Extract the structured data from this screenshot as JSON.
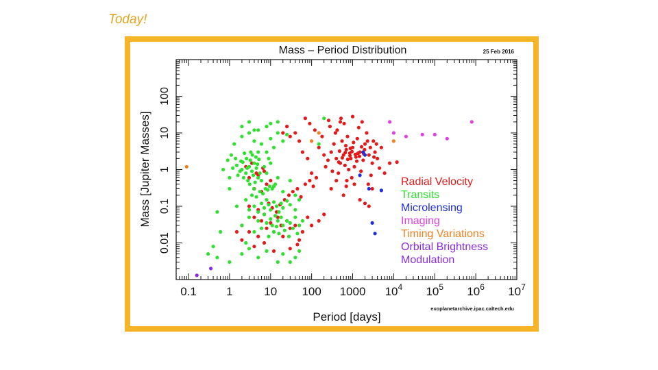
{
  "slide": {
    "title": "Today!"
  },
  "chart_data": {
    "type": "scatter",
    "title": "Mass – Period Distribution",
    "date": "25 Feb 2016",
    "source": "exoplanetarchive.ipac.caltech.edu",
    "xlabel": "Period [days]",
    "ylabel": "Mass [Jupiter Masses]",
    "xscale": "log",
    "yscale": "log",
    "xlim": [
      0.05,
      10000000
    ],
    "ylim": [
      0.001,
      1000
    ],
    "xticks": [
      {
        "v": 0.1,
        "base": "0.1",
        "exp": ""
      },
      {
        "v": 1,
        "base": "1",
        "exp": ""
      },
      {
        "v": 10,
        "base": "10",
        "exp": ""
      },
      {
        "v": 100,
        "base": "100",
        "exp": ""
      },
      {
        "v": 1000,
        "base": "1000",
        "exp": ""
      },
      {
        "v": 10000,
        "base": "10",
        "exp": "4"
      },
      {
        "v": 100000,
        "base": "10",
        "exp": "5"
      },
      {
        "v": 1000000,
        "base": "10",
        "exp": "6"
      },
      {
        "v": 10000000,
        "base": "10",
        "exp": "7"
      }
    ],
    "yticks": [
      {
        "v": 0.01,
        "label": "0.01"
      },
      {
        "v": 0.1,
        "label": "0.1"
      },
      {
        "v": 1,
        "label": "1"
      },
      {
        "v": 10,
        "label": "10"
      },
      {
        "v": 100,
        "label": "100"
      }
    ],
    "legend_position": "right",
    "series": [
      {
        "name": "Radial Velocity",
        "color": "#e41a1a",
        "points": [
          [
            300,
            3
          ],
          [
            400,
            2
          ],
          [
            500,
            1.5
          ],
          [
            600,
            2.5
          ],
          [
            700,
            3.5
          ],
          [
            800,
            1
          ],
          [
            900,
            2
          ],
          [
            1000,
            4
          ],
          [
            1100,
            1.2
          ],
          [
            1200,
            2.2
          ],
          [
            1500,
            3
          ],
          [
            1800,
            1.8
          ],
          [
            2000,
            5
          ],
          [
            2500,
            2.5
          ],
          [
            3000,
            1.5
          ],
          [
            3500,
            3
          ],
          [
            4000,
            2
          ],
          [
            5000,
            4
          ],
          [
            250,
            1.8
          ],
          [
            350,
            5
          ],
          [
            450,
            0.8
          ],
          [
            550,
            6
          ],
          [
            650,
            1.3
          ],
          [
            750,
            8
          ],
          [
            850,
            2.8
          ],
          [
            950,
            0.6
          ],
          [
            1300,
            7
          ],
          [
            1600,
            0.9
          ],
          [
            2200,
            10
          ],
          [
            2800,
            0.7
          ],
          [
            3200,
            6
          ],
          [
            4500,
            1.1
          ],
          [
            200,
            2.5
          ],
          [
            150,
            4
          ],
          [
            180,
            8
          ],
          [
            220,
            1.2
          ],
          [
            280,
            15
          ],
          [
            320,
            0.9
          ],
          [
            420,
            12
          ],
          [
            520,
            25
          ],
          [
            620,
            18
          ],
          [
            720,
            0.5
          ],
          [
            1400,
            14
          ],
          [
            1700,
            20
          ],
          [
            2400,
            0.4
          ],
          [
            6000,
            0.8
          ],
          [
            8000,
            1.5
          ],
          [
            12000,
            1.6
          ],
          [
            700,
            0.35
          ],
          [
            1100,
            0.4
          ],
          [
            300,
            0.3
          ],
          [
            3000,
            0.3
          ],
          [
            2000,
            0.12
          ],
          [
            1500,
            0.15
          ],
          [
            2500,
            0.1
          ],
          [
            600,
            0.2
          ],
          [
            400,
            0.5
          ],
          [
            100,
            0.8
          ],
          [
            80,
            2
          ],
          [
            60,
            3
          ],
          [
            50,
            6
          ],
          [
            40,
            10
          ],
          [
            30,
            8
          ],
          [
            25,
            15
          ],
          [
            20,
            10
          ],
          [
            120,
            12
          ],
          [
            90,
            18
          ],
          [
            70,
            25
          ],
          [
            500,
            20
          ],
          [
            260,
            22
          ],
          [
            1000,
            28
          ],
          [
            380,
            10
          ],
          [
            480,
            3.2
          ],
          [
            680,
            4.5
          ],
          [
            880,
            3.8
          ],
          [
            1050,
            5.5
          ],
          [
            1350,
            2.8
          ],
          [
            1650,
            4.2
          ],
          [
            1950,
            3.5
          ],
          [
            2300,
            6
          ],
          [
            2700,
            4
          ],
          [
            3300,
            2.2
          ],
          [
            3800,
            5
          ],
          [
            460,
            1.6
          ],
          [
            560,
            2.1
          ],
          [
            660,
            2.9
          ],
          [
            760,
            1.9
          ],
          [
            860,
            2.4
          ],
          [
            960,
            3.1
          ],
          [
            1160,
            2.6
          ],
          [
            1260,
            1.7
          ],
          [
            1460,
            2.3
          ],
          [
            1860,
            2.7
          ],
          [
            2,
            0.03
          ],
          [
            3,
            0.02
          ],
          [
            4,
            0.05
          ],
          [
            5,
            0.015
          ],
          [
            6,
            0.04
          ],
          [
            8,
            0.025
          ],
          [
            10,
            0.035
          ],
          [
            12,
            0.02
          ],
          [
            15,
            0.05
          ],
          [
            18,
            0.03
          ],
          [
            20,
            0.015
          ],
          [
            25,
            0.04
          ],
          [
            30,
            0.025
          ],
          [
            40,
            0.03
          ],
          [
            50,
            0.012
          ],
          [
            60,
            0.02
          ],
          [
            80,
            0.05
          ],
          [
            100,
            0.03
          ],
          [
            150,
            0.04
          ],
          [
            200,
            0.06
          ],
          [
            3,
            0.1
          ],
          [
            5,
            0.08
          ],
          [
            7,
            0.06
          ],
          [
            9,
            0.12
          ],
          [
            11,
            0.09
          ],
          [
            14,
            0.07
          ],
          [
            17,
            0.11
          ],
          [
            22,
            0.15
          ],
          [
            28,
            0.2
          ],
          [
            35,
            0.25
          ],
          [
            45,
            0.3
          ],
          [
            55,
            0.18
          ],
          [
            70,
            0.4
          ],
          [
            90,
            0.5
          ],
          [
            110,
            0.35
          ],
          [
            130,
            0.6
          ],
          [
            4,
            0.3
          ],
          [
            6,
            0.25
          ],
          [
            8,
            0.4
          ],
          [
            10,
            0.5
          ],
          [
            12,
            0.35
          ],
          [
            3,
            0.6
          ],
          [
            5,
            0.7
          ],
          [
            7,
            0.9
          ],
          [
            2.5,
            1.2
          ],
          [
            3.5,
            1.5
          ],
          [
            4.5,
            0.8
          ],
          [
            6.5,
            1.1
          ],
          [
            2,
            0.012
          ],
          [
            1.5,
            0.02
          ],
          [
            4,
            0.008
          ],
          [
            7,
            0.01
          ],
          [
            12,
            0.006
          ],
          [
            30,
            0.007
          ],
          [
            45,
            0.009
          ]
        ]
      },
      {
        "name": "Transits",
        "color": "#2fe02f",
        "points": [
          [
            2,
            1
          ],
          [
            2.5,
            0.8
          ],
          [
            3,
            1.2
          ],
          [
            3.5,
            0.9
          ],
          [
            4,
            1.5
          ],
          [
            2.2,
            0.6
          ],
          [
            2.8,
            0.5
          ],
          [
            3.2,
            1.8
          ],
          [
            3.8,
            0.7
          ],
          [
            4.5,
            1.1
          ],
          [
            5,
            0.6
          ],
          [
            1.5,
            1.3
          ],
          [
            1.8,
            0.9
          ],
          [
            2.1,
            1.6
          ],
          [
            2.6,
            2
          ],
          [
            3.1,
            0.4
          ],
          [
            3.6,
            2.5
          ],
          [
            4.2,
            0.45
          ],
          [
            4.8,
            1.4
          ],
          [
            5.5,
            0.8
          ],
          [
            1.2,
            1.1
          ],
          [
            1.4,
            2
          ],
          [
            1.6,
            0.7
          ],
          [
            1.9,
            1.7
          ],
          [
            2.3,
            2.8
          ],
          [
            2.7,
            1.1
          ],
          [
            3.3,
            3
          ],
          [
            3.9,
            0.3
          ],
          [
            4.4,
            2.2
          ],
          [
            5.2,
            1.9
          ],
          [
            6,
            0.5
          ],
          [
            7,
            1.2
          ],
          [
            8,
            0.8
          ],
          [
            9,
            2
          ],
          [
            10,
            1.5
          ],
          [
            12,
            0.35
          ],
          [
            15,
            0.6
          ],
          [
            20,
            0.25
          ],
          [
            30,
            0.5
          ],
          [
            40,
            0.2
          ],
          [
            6,
            5
          ],
          [
            8,
            3
          ],
          [
            10,
            7
          ],
          [
            12,
            4
          ],
          [
            15,
            10
          ],
          [
            20,
            6
          ],
          [
            25,
            9
          ],
          [
            1.3,
            5
          ],
          [
            2,
            8
          ],
          [
            3,
            10
          ],
          [
            4,
            6
          ],
          [
            5,
            12
          ],
          [
            2,
            15
          ],
          [
            3,
            20
          ],
          [
            4,
            12
          ],
          [
            8,
            15
          ],
          [
            10,
            18
          ],
          [
            15,
            20
          ],
          [
            5,
            3
          ],
          [
            1.1,
            2.5
          ],
          [
            0.9,
            1.8
          ],
          [
            0.7,
            1
          ],
          [
            1,
            0.6
          ],
          [
            2,
            0.03
          ],
          [
            3,
            0.05
          ],
          [
            4,
            0.02
          ],
          [
            5,
            0.04
          ],
          [
            6,
            0.025
          ],
          [
            7,
            0.06
          ],
          [
            8,
            0.035
          ],
          [
            9,
            0.015
          ],
          [
            10,
            0.045
          ],
          [
            11,
            0.03
          ],
          [
            12,
            0.02
          ],
          [
            13,
            0.055
          ],
          [
            14,
            0.028
          ],
          [
            15,
            0.04
          ],
          [
            16,
            0.018
          ],
          [
            18,
            0.05
          ],
          [
            20,
            0.03
          ],
          [
            22,
            0.022
          ],
          [
            25,
            0.04
          ],
          [
            28,
            0.015
          ],
          [
            30,
            0.035
          ],
          [
            35,
            0.025
          ],
          [
            40,
            0.05
          ],
          [
            45,
            0.018
          ],
          [
            50,
            0.03
          ],
          [
            60,
            0.04
          ],
          [
            3,
            0.08
          ],
          [
            4,
            0.1
          ],
          [
            5,
            0.07
          ],
          [
            6,
            0.12
          ],
          [
            7,
            0.09
          ],
          [
            8,
            0.15
          ],
          [
            9,
            0.11
          ],
          [
            10,
            0.08
          ],
          [
            12,
            0.13
          ],
          [
            14,
            0.1
          ],
          [
            16,
            0.07
          ],
          [
            18,
            0.12
          ],
          [
            20,
            0.09
          ],
          [
            25,
            0.14
          ],
          [
            30,
            0.11
          ],
          [
            40,
            0.08
          ],
          [
            50,
            0.15
          ],
          [
            2.5,
            0.15
          ],
          [
            3.5,
            0.2
          ],
          [
            4.5,
            0.18
          ],
          [
            5.5,
            0.25
          ],
          [
            6.5,
            0.22
          ],
          [
            7.5,
            0.3
          ],
          [
            8.5,
            0.28
          ],
          [
            9.5,
            0.35
          ],
          [
            11,
            0.3
          ],
          [
            13,
            0.4
          ],
          [
            0.3,
            0.005
          ],
          [
            0.4,
            0.008
          ],
          [
            0.5,
            0.004
          ],
          [
            1,
            0.003
          ],
          [
            2,
            0.005
          ],
          [
            3,
            0.007
          ],
          [
            5,
            0.004
          ],
          [
            8,
            0.006
          ],
          [
            15,
            0.003
          ],
          [
            20,
            0.005
          ],
          [
            30,
            0.003
          ],
          [
            40,
            0.004
          ],
          [
            50,
            0.006
          ],
          [
            0.5,
            0.07
          ],
          [
            1,
            0.3
          ],
          [
            1.5,
            0.1
          ],
          [
            0.6,
            0.02
          ],
          [
            2.5,
            0.01
          ],
          [
            150,
            5
          ],
          [
            200,
            25
          ]
        ]
      },
      {
        "name": "Microlensing",
        "color": "#1f2fe0",
        "points": [
          [
            1500,
            0.7
          ],
          [
            2000,
            2.5
          ],
          [
            2500,
            0.3
          ],
          [
            3000,
            0.035
          ],
          [
            3500,
            0.018
          ],
          [
            5000,
            0.27
          ],
          [
            1800,
            3
          ]
        ]
      },
      {
        "name": "Imaging",
        "color": "#e040e0",
        "points": [
          [
            8000,
            20
          ],
          [
            10000,
            10
          ],
          [
            20000,
            8
          ],
          [
            50000,
            9
          ],
          [
            100000,
            9
          ],
          [
            200000,
            7
          ],
          [
            800000,
            20
          ]
        ]
      },
      {
        "name": "Timing Variations",
        "color": "#f08020",
        "points": [
          [
            0.09,
            1.2
          ],
          [
            10000,
            6
          ],
          [
            100,
            6
          ],
          [
            150,
            10
          ]
        ]
      },
      {
        "name": "Orbital Brightness Modulation",
        "color": "#8a2be2",
        "points": [
          [
            0.16,
            0.0013
          ],
          [
            0.35,
            0.002
          ]
        ]
      }
    ]
  }
}
